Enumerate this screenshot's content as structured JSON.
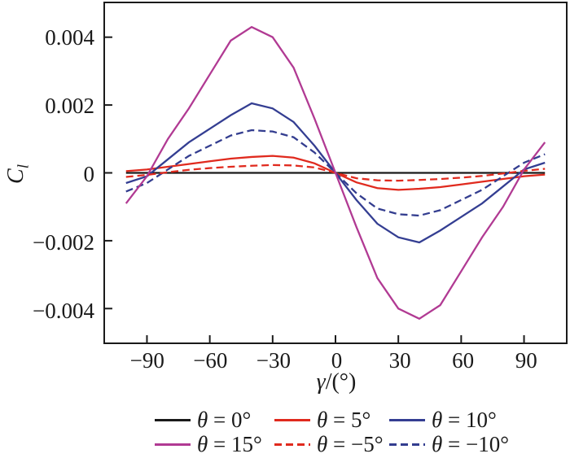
{
  "chart_data": {
    "type": "line",
    "title": "",
    "xlabel": {
      "symbol": "γ",
      "rest": "/(°)"
    },
    "ylabel": {
      "main": "C",
      "sub": "l"
    },
    "xlim": [
      -110,
      110
    ],
    "ylim": [
      -0.005,
      0.005
    ],
    "xticks": [
      -90,
      -60,
      -30,
      0,
      30,
      60,
      90
    ],
    "xtick_labels": [
      "−90",
      "−60",
      "−30",
      "0",
      "30",
      "60",
      "90"
    ],
    "yticks": [
      0.004,
      0.002,
      0,
      -0.002,
      -0.004
    ],
    "ytick_labels": [
      "0.004",
      "0.002",
      "0",
      "−0.002",
      "−0.004"
    ],
    "grid": false,
    "legend_position": "bottom",
    "axis_color": "#1a1a1a",
    "x": [
      -100,
      -90,
      -80,
      -70,
      -60,
      -50,
      -40,
      -30,
      -20,
      -10,
      0,
      10,
      20,
      30,
      40,
      50,
      60,
      70,
      80,
      90,
      100
    ],
    "draw_order": [
      0,
      1,
      2,
      5,
      4,
      3
    ],
    "series": [
      {
        "name": "theta-0",
        "symbol": "θ",
        "value_label": " = 0°",
        "color": "#1a1a1a",
        "dash": "solid",
        "values": [
          0,
          0,
          0,
          0,
          0,
          0,
          0,
          0,
          0,
          0,
          0,
          0,
          0,
          0,
          0,
          0,
          0,
          0,
          0,
          0,
          0
        ]
      },
      {
        "name": "theta-5",
        "symbol": "θ",
        "value_label": " = 5°",
        "color": "#e02a1e",
        "dash": "solid",
        "values": [
          5e-05,
          0.0001,
          0.00018,
          0.00026,
          0.00034,
          0.00042,
          0.00047,
          0.0005,
          0.00045,
          0.00028,
          0,
          -0.00028,
          -0.00045,
          -0.0005,
          -0.00047,
          -0.00042,
          -0.00034,
          -0.00026,
          -0.00018,
          -0.0001,
          -5e-05
        ]
      },
      {
        "name": "theta-10",
        "symbol": "θ",
        "value_label": " = 10°",
        "color": "#343e92",
        "dash": "solid",
        "values": [
          -0.0003,
          -0.0001,
          0.0004,
          0.0009,
          0.0013,
          0.0017,
          0.00205,
          0.0019,
          0.0015,
          0.0008,
          0,
          -0.0008,
          -0.0015,
          -0.0019,
          -0.00205,
          -0.0017,
          -0.0013,
          -0.0009,
          -0.0004,
          0.0001,
          0.0003
        ]
      },
      {
        "name": "theta-15",
        "symbol": "θ",
        "value_label": " = 15°",
        "color": "#b13a93",
        "dash": "solid",
        "values": [
          -0.0009,
          -0.0001,
          0.001,
          0.0019,
          0.0029,
          0.0039,
          0.0043,
          0.004,
          0.0031,
          0.0016,
          0,
          -0.0016,
          -0.0031,
          -0.004,
          -0.0043,
          -0.0039,
          -0.0029,
          -0.0019,
          -0.001,
          0.0001,
          0.0009
        ]
      },
      {
        "name": "theta-m5",
        "symbol": "θ",
        "value_label": " = −5°",
        "color": "#e02a1e",
        "dash": "dashed",
        "values": [
          -0.00012,
          -6e-05,
          2e-05,
          9e-05,
          0.00014,
          0.00018,
          0.00021,
          0.00023,
          0.00022,
          0.00016,
          0,
          -0.00016,
          -0.00022,
          -0.00023,
          -0.00021,
          -0.00018,
          -0.00014,
          -9e-05,
          -2e-05,
          6e-05,
          0.00012
        ]
      },
      {
        "name": "theta-m10",
        "symbol": "θ",
        "value_label": " = −10°",
        "color": "#333d8f",
        "dash": "dashed",
        "values": [
          -0.00055,
          -0.0003,
          0.0001,
          0.0005,
          0.0008,
          0.0011,
          0.00126,
          0.00122,
          0.00105,
          0.0006,
          0,
          -0.0006,
          -0.00105,
          -0.00122,
          -0.00126,
          -0.0011,
          -0.0008,
          -0.0005,
          -0.0001,
          0.0003,
          0.00055
        ]
      }
    ]
  }
}
